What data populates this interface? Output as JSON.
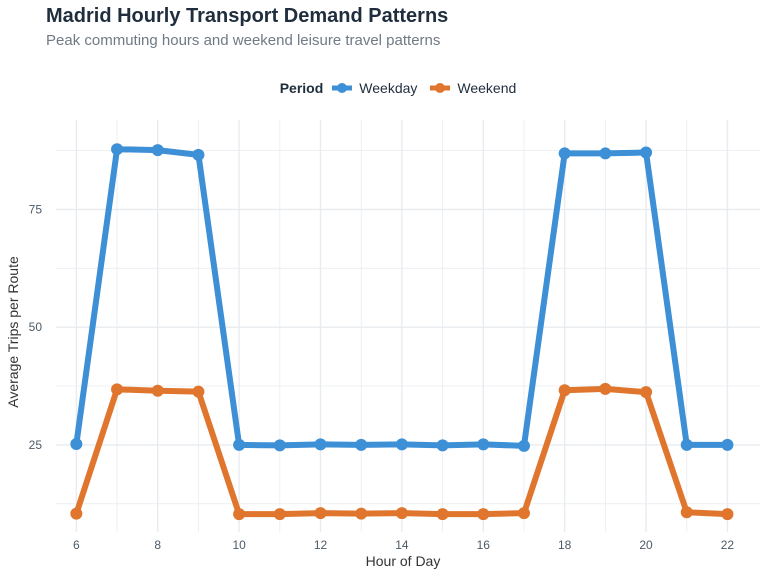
{
  "chart_data": {
    "type": "line",
    "title": "Madrid Hourly Transport Demand Patterns",
    "subtitle": "Peak commuting hours and weekend leisure travel patterns",
    "xlabel": "Hour of Day",
    "ylabel": "Average Trips per Route",
    "legend_title": "Period",
    "legend_position": "top",
    "grid": true,
    "xlim": [
      5.5,
      22.8
    ],
    "ylim": [
      6.5,
      94
    ],
    "x_ticks": [
      6,
      8,
      10,
      12,
      14,
      16,
      18,
      20,
      22
    ],
    "y_ticks": [
      25,
      50,
      75
    ],
    "x": [
      6,
      7,
      8,
      9,
      10,
      11,
      12,
      13,
      14,
      15,
      16,
      17,
      18,
      19,
      20,
      21,
      22
    ],
    "series": [
      {
        "name": "Weekday",
        "color": "#3d8fd6",
        "values": [
          25.2,
          87.8,
          87.6,
          86.6,
          25.0,
          24.9,
          25.1,
          25.0,
          25.1,
          24.9,
          25.1,
          24.8,
          86.9,
          86.9,
          87.1,
          25.0,
          25.0
        ]
      },
      {
        "name": "Weekend",
        "color": "#e0762e",
        "values": [
          10.4,
          36.8,
          36.5,
          36.3,
          10.3,
          10.3,
          10.5,
          10.4,
          10.5,
          10.3,
          10.3,
          10.5,
          36.6,
          36.9,
          36.2,
          10.7,
          10.3
        ]
      }
    ]
  }
}
